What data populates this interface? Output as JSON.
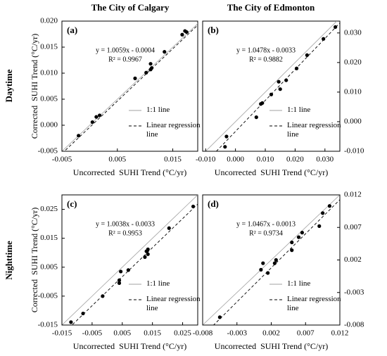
{
  "column_titles": [
    "The City of Calgary",
    "The City of Edmonton"
  ],
  "row_titles": [
    "Daytime",
    "Nighttime"
  ],
  "chart_data": [
    {
      "type": "scatter",
      "panel_label": "(a)",
      "y_axis_side": "left",
      "x_label": "Uncorrected  SUHI Trend (°C/yr)",
      "y_label": "Corrected  SUHI Trend (°C/yr)",
      "x": [
        -0.002,
        0.0005,
        0.0012,
        0.0018,
        0.0082,
        0.0102,
        0.011,
        0.011,
        0.0112,
        0.0135,
        0.0167,
        0.0172,
        0.0175
      ],
      "values": [
        -0.002,
        0.0006,
        0.0016,
        0.0019,
        0.009,
        0.0101,
        0.0118,
        0.0107,
        0.011,
        0.0141,
        0.0174,
        0.0181,
        0.0179
      ],
      "color": "#000000",
      "xlim": [
        -0.005,
        0.0195
      ],
      "ylim": [
        -0.005,
        0.02
      ],
      "xticks": [
        -0.005,
        0.005,
        0.015
      ],
      "yticks": [
        -0.005,
        {
          "value": 0,
          "label": "0.000"
        },
        0.005,
        {
          "value": 0.01,
          "label": "0.010"
        },
        0.015,
        {
          "value": 0.02,
          "label": "0.020"
        }
      ],
      "equation": {
        "label": "y = 1.0059x - 0.0004",
        "slope": 1.0059,
        "intercept": -0.0004
      },
      "r2_label": "R² = 0.9967",
      "lines": [
        {
          "name": "1:1 line",
          "color": "#a0a0a0"
        },
        {
          "name": "Linear regression line",
          "color": "#000000",
          "dash": true
        }
      ]
    },
    {
      "type": "scatter",
      "panel_label": "(b)",
      "y_axis_side": "right",
      "x_label": "Uncorrected  SUHI Trend (°C/yr)",
      "x": [
        -0.003,
        -0.0035,
        0.007,
        0.0085,
        0.009,
        0.012,
        0.0145,
        0.015,
        0.017,
        0.0205,
        0.024,
        0.0295,
        0.0335
      ],
      "values": [
        -0.005,
        -0.0085,
        0.0015,
        0.006,
        0.0063,
        0.0092,
        0.0135,
        0.011,
        0.014,
        0.018,
        0.0225,
        0.028,
        0.032
      ],
      "color": "#000000",
      "xlim": [
        -0.011,
        0.035
      ],
      "ylim": [
        -0.01,
        0.034
      ],
      "xticks": [
        {
          "value": -0.01,
          "label": "-0.010"
        },
        {
          "value": 0,
          "label": "0.000"
        },
        {
          "value": 0.01,
          "label": "0.010"
        },
        {
          "value": 0.02,
          "label": "0.020"
        },
        {
          "value": 0.03,
          "label": "0.030"
        }
      ],
      "yticks": [
        {
          "value": -0.01,
          "label": "-0.010"
        },
        {
          "value": 0,
          "label": "0.000"
        },
        {
          "value": 0.01,
          "label": "0.010"
        },
        {
          "value": 0.02,
          "label": "0.020"
        },
        {
          "value": 0.03,
          "label": "0.030"
        }
      ],
      "equation": {
        "label": "y = 1.0478x - 0.0033",
        "slope": 1.0478,
        "intercept": -0.0033
      },
      "r2_label": "R² = 0.9882",
      "lines": [
        {
          "name": "1:1 line",
          "color": "#a0a0a0"
        },
        {
          "name": "Linear regression line",
          "color": "#000000",
          "dash": true
        }
      ]
    },
    {
      "type": "scatter",
      "panel_label": "(c)",
      "y_axis_side": "left",
      "x_label": "Uncorrected  SUHI Trend (°C/yr)",
      "y_label": "Corrected  SUHI Trend (°C/yr)",
      "x": [
        -0.012,
        -0.008,
        -0.0015,
        0.004,
        0.004,
        0.0045,
        0.007,
        0.0125,
        0.013,
        0.0135,
        0.0135,
        0.0205,
        0.0285
      ],
      "values": [
        -0.014,
        -0.011,
        -0.005,
        -0.0005,
        0.0005,
        0.0035,
        0.004,
        0.0085,
        0.0105,
        0.0095,
        0.0112,
        0.0185,
        0.026
      ],
      "color": "#000000",
      "xlim": [
        -0.015,
        0.03
      ],
      "ylim": [
        -0.015,
        0.03
      ],
      "xticks": [
        -0.015,
        -0.005,
        0.005,
        0.015,
        0.025
      ],
      "yticks": [
        -0.015,
        -0.005,
        0.005,
        0.015,
        0.025
      ],
      "equation": {
        "label": "y = 1.0038x - 0.0033",
        "slope": 1.0038,
        "intercept": -0.0033
      },
      "r2_label": "R² = 0.9953",
      "lines": [
        {
          "name": "1:1 line",
          "color": "#a0a0a0"
        },
        {
          "name": "Linear regression line",
          "color": "#000000",
          "dash": true
        }
      ]
    },
    {
      "type": "scatter",
      "panel_label": "(d)",
      "y_axis_side": "right",
      "x_label": "Uncorrected  SUHI Trend (°C/yr)",
      "x": [
        -0.0055,
        0.0005,
        0.0008,
        0.0015,
        0.0025,
        0.0027,
        0.005,
        0.005,
        0.006,
        0.0065,
        0.009,
        0.0095,
        0.0105
      ],
      "values": [
        -0.0068,
        0.0005,
        0.0015,
        0.0,
        0.0015,
        0.002,
        0.0035,
        0.0047,
        0.0055,
        0.0062,
        0.0072,
        0.0092,
        0.0103
      ],
      "color": "#000000",
      "xlim": [
        -0.008,
        0.012
      ],
      "ylim": [
        -0.008,
        0.012
      ],
      "xticks": [
        -0.008,
        -0.003,
        0.002,
        0.007,
        0.012
      ],
      "yticks": [
        -0.008,
        -0.003,
        0.002,
        0.007,
        0.012
      ],
      "equation": {
        "label": "y = 1.0467x - 0.0013",
        "slope": 1.0467,
        "intercept": -0.0013
      },
      "r2_label": "R² = 0.9734",
      "lines": [
        {
          "name": "1:1 line",
          "color": "#a0a0a0"
        },
        {
          "name": "Linear regression line",
          "color": "#000000",
          "dash": true
        }
      ]
    }
  ]
}
